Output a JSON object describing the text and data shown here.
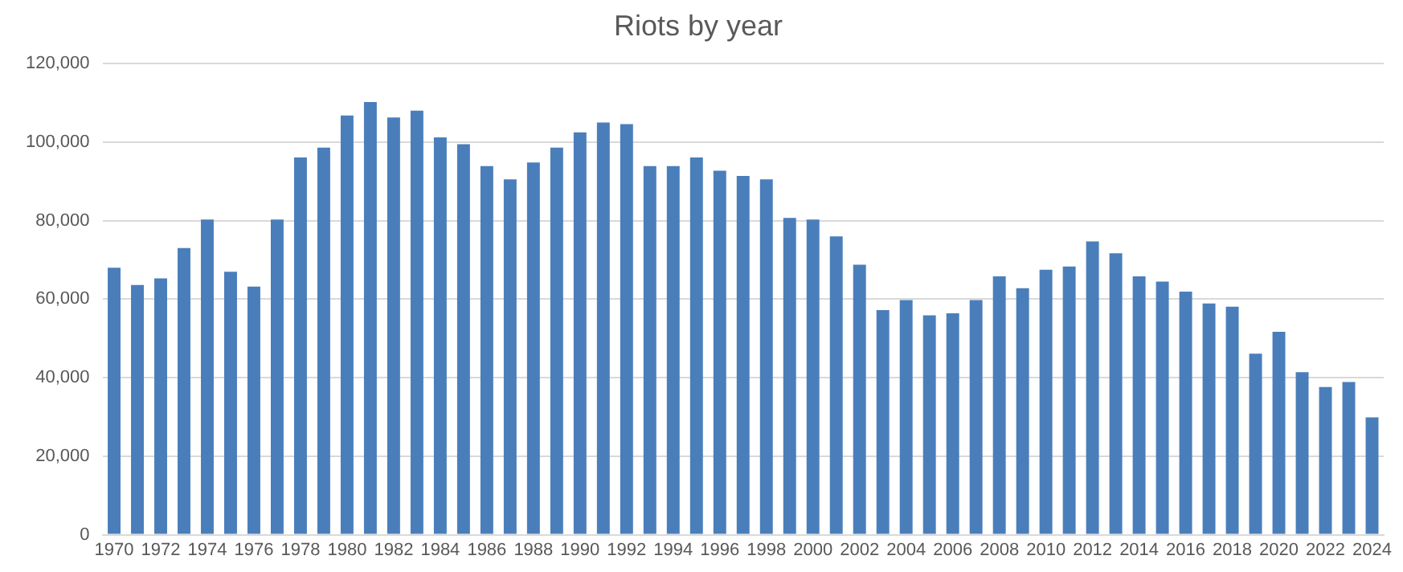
{
  "chart_data": {
    "type": "bar",
    "title": "Riots by year",
    "categories": [
      "1970",
      null,
      "1972",
      null,
      "1974",
      null,
      "1976",
      null,
      "1978",
      null,
      "1980",
      null,
      "1982",
      null,
      "1984",
      null,
      "1986",
      null,
      "1988",
      null,
      "1990",
      null,
      "1992",
      null,
      "1994",
      null,
      "1996",
      null,
      "1998",
      null,
      "2000",
      null,
      "2002",
      null,
      "2004",
      null,
      "2006",
      null,
      "2008",
      null,
      "2010",
      null,
      "2012",
      null,
      "2014",
      null,
      "2016",
      null,
      "2018",
      null,
      "2020",
      null,
      "2022",
      null,
      "2024"
    ],
    "values": [
      68000,
      63600,
      65300,
      73000,
      80300,
      67000,
      63200,
      80300,
      96100,
      98600,
      106800,
      110200,
      106300,
      108000,
      101200,
      99500,
      93900,
      90500,
      94800,
      98600,
      102500,
      105000,
      104600,
      93900,
      93900,
      96100,
      92700,
      91400,
      90500,
      80700,
      80300,
      76000,
      68800,
      57200,
      59800,
      55900,
      56400,
      59800,
      65800,
      62800,
      67500,
      68300,
      74700,
      71700,
      65800,
      64500,
      61900,
      58900,
      58100,
      46100,
      51700,
      41400,
      37600,
      38900,
      29900
    ],
    "color": "#4a7ebb",
    "ylim": [
      0,
      120000
    ],
    "yticks": [
      0,
      {
        "value": 20000,
        "label": "20,000"
      },
      {
        "value": 40000,
        "label": "40,000"
      },
      {
        "value": 60000,
        "label": "60,000"
      },
      {
        "value": 80000,
        "label": "80,000"
      },
      {
        "value": 100000,
        "label": "100,000"
      },
      {
        "value": 120000,
        "label": "120,000"
      }
    ],
    "grid": "y"
  }
}
